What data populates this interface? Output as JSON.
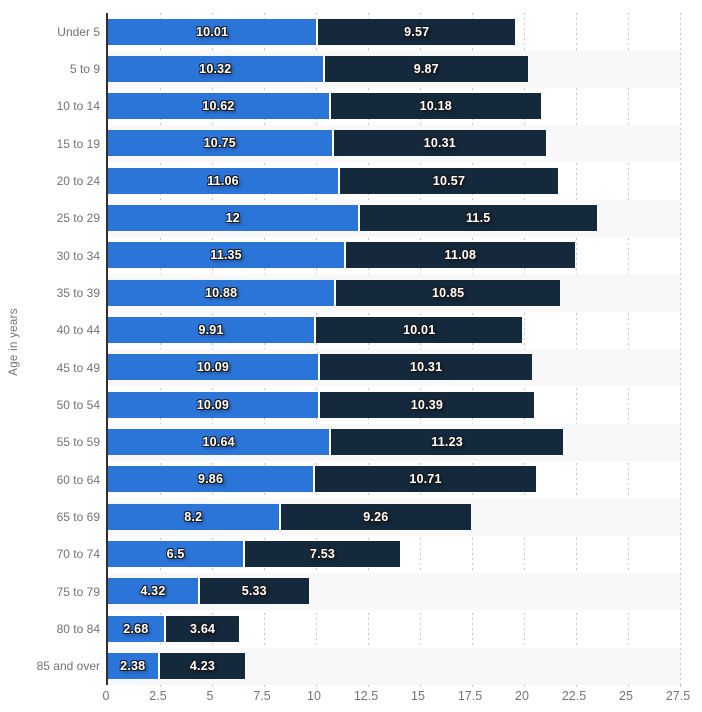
{
  "chart_data": {
    "type": "bar",
    "orientation": "horizontal",
    "stacked": true,
    "ylabel": "Age in years",
    "xlabel": "",
    "xlim": [
      0,
      27.5
    ],
    "x_ticks": [
      "0",
      "2.5",
      "5",
      "7.5",
      "10",
      "12.5",
      "15",
      "17.5",
      "20",
      "22.5",
      "25",
      "27.5"
    ],
    "grid": "vertical-dotted",
    "legend_position": "none",
    "categories": [
      "Under 5",
      "5 to 9",
      "10 to 14",
      "15 to 19",
      "20 to 24",
      "25 to 29",
      "30 to 34",
      "35 to 39",
      "40 to 44",
      "45 to 49",
      "50 to 54",
      "55 to 59",
      "60 to 64",
      "65 to 69",
      "70 to 74",
      "75 to 79",
      "80 to 84",
      "85 and over"
    ],
    "series": [
      {
        "name": "series-1",
        "color": "#2b74d8",
        "values": [
          10.01,
          10.32,
          10.62,
          10.75,
          11.06,
          12,
          11.35,
          10.88,
          9.91,
          10.09,
          10.09,
          10.64,
          9.86,
          8.2,
          6.5,
          4.32,
          2.68,
          2.38
        ]
      },
      {
        "name": "series-2",
        "color": "#15293d",
        "values": [
          9.57,
          9.87,
          10.18,
          10.31,
          10.57,
          11.5,
          11.08,
          10.85,
          10.01,
          10.31,
          10.39,
          11.23,
          10.71,
          9.26,
          7.53,
          5.33,
          3.64,
          4.23
        ]
      }
    ],
    "colors": {
      "row_stripe": "#f8f8f8",
      "gridline": "#c9c9c9",
      "axis_line": "#303030",
      "axis_text": "#737373",
      "value_text": "#ffffff"
    }
  }
}
